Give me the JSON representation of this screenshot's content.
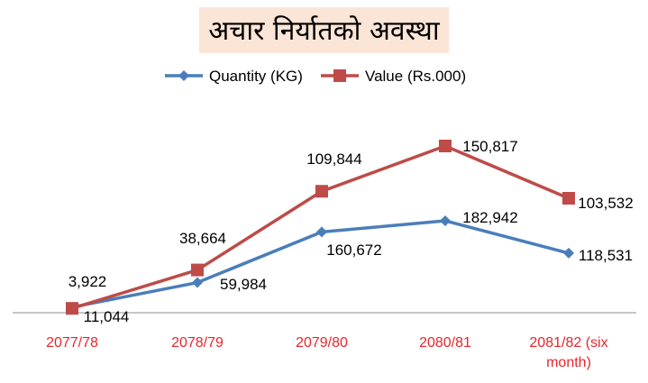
{
  "chart_data": {
    "type": "line",
    "title": "अचार निर्यातको अवस्था",
    "categories": [
      "2077/78",
      "2078/79",
      "2079/80",
      "2080/81",
      "2081/82 (six month)"
    ],
    "series": [
      {
        "name": "Quantity (KG)",
        "values": [
          11044,
          59984,
          160672,
          182942,
          118531
        ],
        "labels": [
          "11,044",
          "59,984",
          "160,672",
          "182,942",
          "118,531"
        ],
        "color": "#4a7ebb",
        "marker": "diamond"
      },
      {
        "name": "Value (Rs.000)",
        "values": [
          3922,
          38664,
          109844,
          150817,
          103532
        ],
        "labels": [
          "3,922",
          "38,664",
          "109,844",
          "150,817",
          "103,532"
        ],
        "color": "#be4b48",
        "marker": "square"
      }
    ],
    "legend_position": "top",
    "grid": false,
    "category_color": "#e8262d"
  }
}
